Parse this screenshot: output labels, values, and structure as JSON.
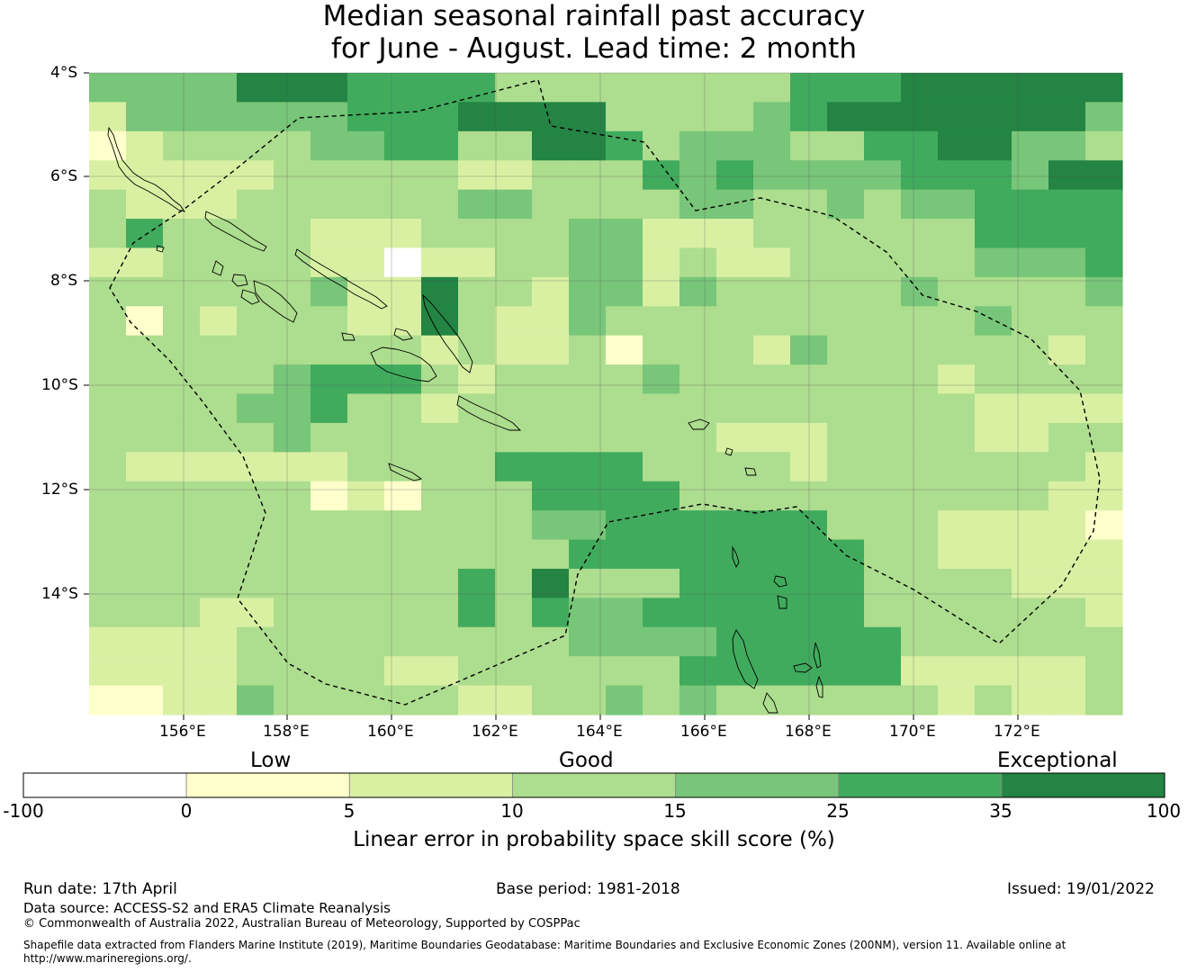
{
  "title": {
    "line1": "Median seasonal rainfall past accuracy",
    "line2": "for June - August. Lead time: 2 month"
  },
  "map": {
    "lat_labels": [
      "4°S",
      "6°S",
      "8°S",
      "10°S",
      "12°S",
      "14°S"
    ],
    "lon_labels": [
      "156°E",
      "158°E",
      "160°E",
      "162°E",
      "164°E",
      "166°E",
      "168°E",
      "170°E",
      "172°E"
    ],
    "region": "Solomon Islands and Vanuatu",
    "colors": {
      "white": "#ffffff",
      "yellow": "#ffffcc",
      "lightgreen1": "#d9f0a3",
      "lightgreen2": "#addd8e",
      "green": "#78c679",
      "midgreen": "#41ab5d",
      "darkgreen": "#238443"
    },
    "grid_rows": [
      "4444666555533333333555666666",
      "2444444555666633334566666664",
      "1233334455336653444335566443",
      "2222233333223335454444555466",
      "3222333333443333443343445555",
      "3533332223333442223333335555",
      "2233332202233442322333334445",
      "3333334226332442433333433334",
      "3132333226322433333333334333",
      "3333333332322313332433333323",
      "3333345553233334333333323333",
      "3333445332333333333333332222",
      "3333343333333333322233332233",
      "3222222333355553333233333332",
      "3333331213335555333333333322",
      "3333333333334455555533322221",
      "3333333333333555555553322222",
      "3333333333536333555553333222",
      "3332233333535445555553333332",
      "2222333333333444455555333333",
      "2222333322333333555555222223",
      "1122433333223343433333323223"
    ]
  },
  "colorbar": {
    "categories": [
      "Low",
      "Good",
      "Exceptional"
    ],
    "ticks": [
      "-100",
      "0",
      "5",
      "10",
      "15",
      "25",
      "35",
      "100"
    ],
    "colors": [
      "#ffffff",
      "#ffffcc",
      "#d9f0a3",
      "#addd8e",
      "#78c679",
      "#41ab5d",
      "#238443"
    ],
    "title": "Linear error in probability space skill score (%)"
  },
  "footer": {
    "run_date": "Run date: 17th April",
    "base_period": "Base period: 1981-2018",
    "issued": "Issued: 19/01/2022",
    "data_source": "Data source: ACCESS-S2 and ERA5 Climate Reanalysis",
    "copyright": "© Commonwealth of Australia 2022, Australian Bureau of Meteorology, Supported by COSPPac",
    "shapefile": "Shapefile data extracted from Flanders Marine Institute (2019), Maritime Boundaries Geodatabase: Maritime Boundaries and Exclusive Economic Zones (200NM), version 11. Available online at",
    "url": "http://www.marineregions.org/."
  }
}
